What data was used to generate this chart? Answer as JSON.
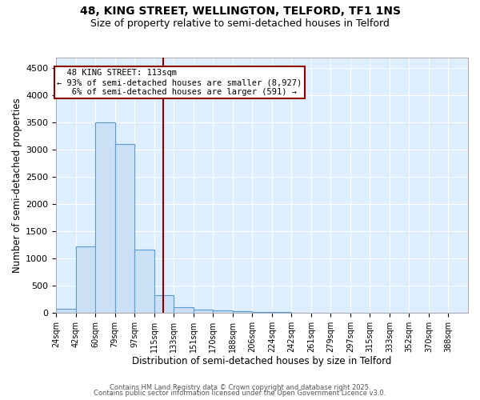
{
  "title_line1": "48, KING STREET, WELLINGTON, TELFORD, TF1 1NS",
  "title_line2": "Size of property relative to semi-detached houses in Telford",
  "xlabel": "Distribution of semi-detached houses by size in Telford",
  "ylabel": "Number of semi-detached properties",
  "bar_left_edges": [
    15,
    33,
    51,
    69,
    87,
    105,
    123,
    141,
    159,
    177,
    195,
    213,
    231,
    249,
    267,
    285,
    303,
    321,
    339,
    357,
    375
  ],
  "bar_heights": [
    75,
    1220,
    3500,
    3100,
    1160,
    330,
    100,
    60,
    50,
    30,
    25,
    25,
    5,
    3,
    2,
    2,
    1,
    1,
    1,
    0,
    0
  ],
  "bin_width": 18,
  "bar_facecolor": "#cce0f5",
  "bar_edgecolor": "#5b9bd5",
  "tick_labels": [
    "24sqm",
    "42sqm",
    "60sqm",
    "79sqm",
    "97sqm",
    "115sqm",
    "133sqm",
    "151sqm",
    "170sqm",
    "188sqm",
    "206sqm",
    "224sqm",
    "242sqm",
    "261sqm",
    "279sqm",
    "297sqm",
    "315sqm",
    "333sqm",
    "352sqm",
    "370sqm",
    "388sqm"
  ],
  "tick_positions": [
    15,
    33,
    51,
    69,
    87,
    105,
    123,
    141,
    159,
    177,
    195,
    213,
    231,
    249,
    267,
    285,
    303,
    321,
    339,
    357,
    375
  ],
  "vline_x": 113,
  "vline_color": "#8b0000",
  "ylim": [
    0,
    4700
  ],
  "yticks": [
    0,
    500,
    1000,
    1500,
    2000,
    2500,
    3000,
    3500,
    4000,
    4500
  ],
  "annotation_text": "  48 KING STREET: 113sqm\n← 93% of semi-detached houses are smaller (8,927)\n   6% of semi-detached houses are larger (591) →",
  "annotation_box_color": "#ffffff",
  "annotation_box_edgecolor": "#8b0000",
  "footer_line1": "Contains HM Land Registry data © Crown copyright and database right 2025.",
  "footer_line2": "Contains public sector information licensed under the Open Government Licence v3.0.",
  "background_color": "#ddeeff",
  "fig_background": "#ffffff",
  "grid_color": "#ffffff",
  "title_fontsize": 10,
  "subtitle_fontsize": 9,
  "axis_label_fontsize": 8.5,
  "tick_fontsize": 7,
  "annotation_fontsize": 7.5,
  "footer_fontsize": 6
}
